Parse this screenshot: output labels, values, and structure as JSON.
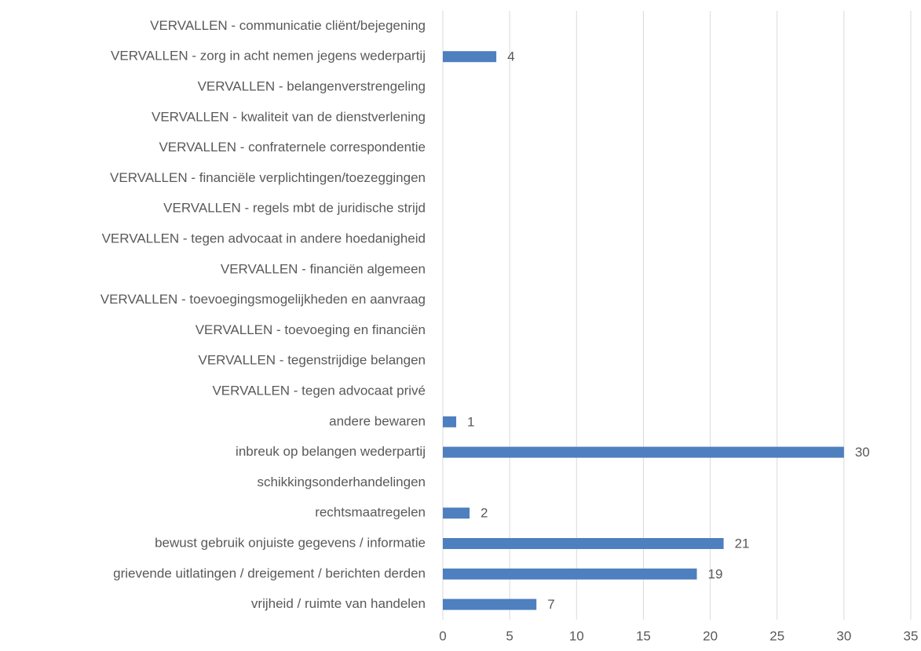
{
  "chart_data": {
    "type": "hbar",
    "categories": [
      "VERVALLEN - communicatie cliënt/bejegening",
      "VERVALLEN - zorg in acht nemen jegens wederpartij",
      "VERVALLEN - belangenverstrengeling",
      "VERVALLEN - kwaliteit van de dienstverlening",
      "VERVALLEN - confraternele correspondentie",
      "VERVALLEN - financiële verplichtingen/toezeggingen",
      "VERVALLEN - regels mbt de juridische strijd",
      "VERVALLEN - tegen advocaat in andere hoedanigheid",
      "VERVALLEN - financiën algemeen",
      "VERVALLEN - toevoegingsmogelijkheden en aanvraag",
      "VERVALLEN - toevoeging en financiën",
      "VERVALLEN - tegenstrijdige belangen",
      "VERVALLEN - tegen advocaat privé",
      "andere bewaren",
      "inbreuk op belangen wederpartij",
      "schikkingsonderhandelingen",
      "rechtsmaatregelen",
      "bewust gebruik onjuiste gegevens / informatie",
      "grievende uitlatingen / dreigement / berichten derden",
      "vrijheid / ruimte van handelen"
    ],
    "values": [
      0,
      4,
      0,
      0,
      0,
      0,
      0,
      0,
      0,
      0,
      0,
      0,
      0,
      1,
      30,
      0,
      2,
      21,
      19,
      7
    ],
    "color": "#4e7fbf",
    "xlim": [
      0,
      35
    ],
    "xticks": [
      0,
      5,
      10,
      15,
      20,
      25,
      30,
      35
    ],
    "grid": true
  }
}
